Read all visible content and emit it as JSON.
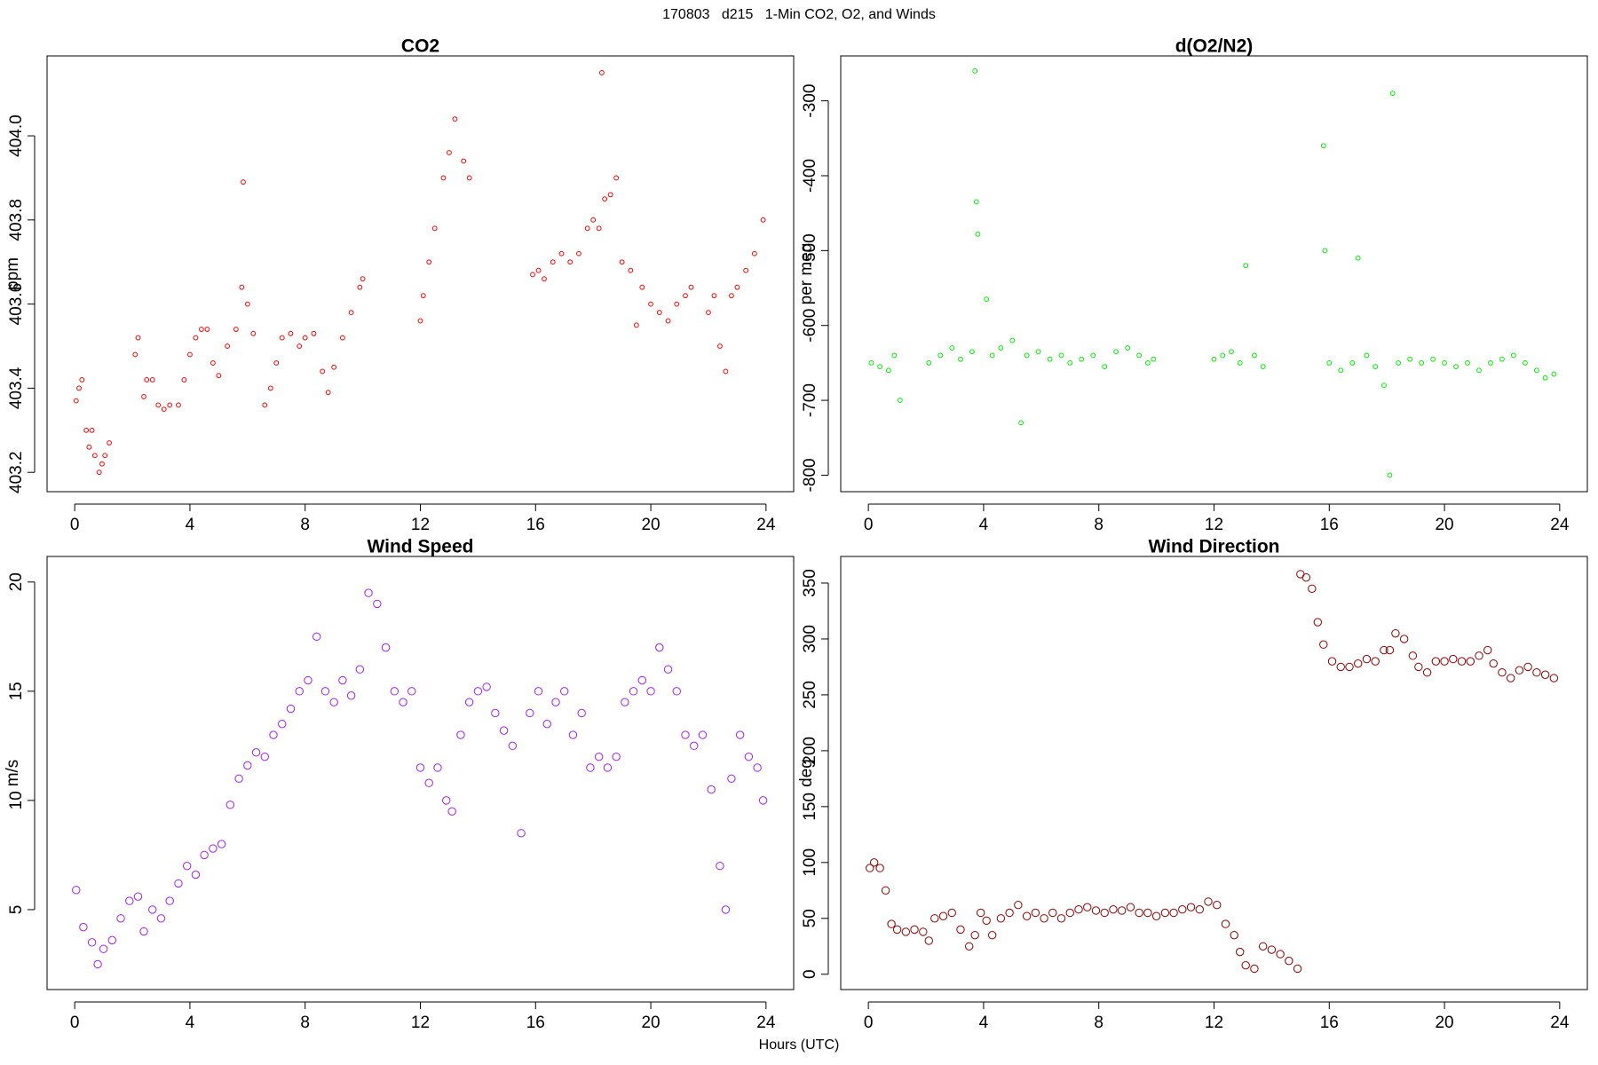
{
  "title": "170803   d215   1-Min CO2, O2, and Winds",
  "x_label": "Hours (UTC)",
  "chart_data": [
    {
      "type": "scatter",
      "title": "CO2",
      "y_label": "ppm",
      "color": "#ff0000",
      "xlim": [
        -0.96,
        24.96
      ],
      "xticks": [
        0,
        4,
        8,
        12,
        16,
        20,
        24
      ],
      "ylim": [
        403.154,
        404.19
      ],
      "yticks": [
        403.2,
        403.4,
        403.6,
        403.8,
        {
          "value": 404,
          "label": "404.0"
        }
      ],
      "x": [
        0.05,
        0.15,
        0.25,
        0.4,
        0.5,
        0.6,
        0.7,
        0.85,
        0.95,
        1.05,
        1.2,
        2.1,
        2.2,
        2.4,
        2.5,
        2.7,
        2.9,
        3.1,
        3.3,
        3.6,
        3.8,
        4.0,
        4.2,
        4.4,
        4.6,
        4.8,
        5.0,
        5.3,
        5.6,
        5.8,
        5.85,
        6.0,
        6.2,
        6.6,
        6.8,
        7.0,
        7.2,
        7.5,
        7.8,
        8.0,
        8.3,
        8.6,
        8.8,
        9.0,
        9.3,
        9.6,
        9.9,
        10.0,
        12.0,
        12.1,
        12.3,
        12.5,
        12.8,
        13.0,
        13.2,
        13.5,
        13.7,
        15.9,
        16.1,
        16.3,
        16.6,
        16.9,
        17.2,
        17.5,
        17.8,
        18.0,
        18.2,
        18.3,
        18.4,
        18.6,
        18.8,
        19.0,
        19.3,
        19.5,
        19.7,
        20.0,
        20.3,
        20.6,
        20.9,
        21.2,
        21.4,
        22.0,
        22.2,
        22.4,
        22.6,
        22.8,
        23.0,
        23.3,
        23.6,
        23.9
      ],
      "values": [
        403.37,
        403.4,
        403.42,
        403.3,
        403.26,
        403.3,
        403.24,
        403.2,
        403.22,
        403.24,
        403.27,
        403.48,
        403.52,
        403.38,
        403.42,
        403.42,
        403.36,
        403.35,
        403.36,
        403.36,
        403.42,
        403.48,
        403.52,
        403.54,
        403.54,
        403.46,
        403.43,
        403.5,
        403.54,
        403.64,
        403.89,
        403.6,
        403.53,
        403.36,
        403.4,
        403.46,
        403.52,
        403.53,
        403.5,
        403.52,
        403.53,
        403.44,
        403.39,
        403.45,
        403.52,
        403.58,
        403.64,
        403.66,
        403.56,
        403.62,
        403.7,
        403.78,
        403.9,
        403.96,
        404.04,
        403.94,
        403.9,
        403.67,
        403.68,
        403.66,
        403.7,
        403.72,
        403.7,
        403.72,
        403.78,
        403.8,
        403.78,
        404.15,
        403.85,
        403.86,
        403.9,
        403.7,
        403.68,
        403.55,
        403.64,
        403.6,
        403.58,
        403.56,
        403.6,
        403.62,
        403.64,
        403.58,
        403.62,
        403.5,
        403.44,
        403.62,
        403.64,
        403.68,
        403.72,
        403.8
      ]
    },
    {
      "type": "scatter",
      "title": "d(O2/N2)",
      "y_label": "per meg",
      "color": "#00ee00",
      "xlim": [
        -0.96,
        24.96
      ],
      "xticks": [
        0,
        4,
        8,
        12,
        16,
        20,
        24
      ],
      "ylim": [
        -822,
        -240
      ],
      "yticks": [
        -800,
        -700,
        -600,
        -500,
        -400,
        -300
      ],
      "x": [
        0.1,
        0.4,
        0.7,
        0.9,
        1.1,
        2.1,
        2.5,
        2.9,
        3.2,
        3.6,
        3.7,
        3.75,
        3.8,
        4.1,
        4.3,
        4.6,
        5.0,
        5.3,
        5.5,
        5.9,
        6.3,
        6.7,
        7.0,
        7.4,
        7.8,
        8.2,
        8.6,
        9.0,
        9.4,
        9.7,
        9.9,
        12.0,
        12.3,
        12.6,
        12.9,
        13.1,
        13.4,
        13.7,
        15.8,
        15.85,
        16.0,
        16.4,
        16.8,
        17.0,
        17.3,
        17.6,
        17.9,
        18.1,
        18.2,
        18.4,
        18.8,
        19.2,
        19.6,
        20.0,
        20.4,
        20.8,
        21.2,
        21.6,
        22.0,
        22.4,
        22.8,
        23.2,
        23.5,
        23.8
      ],
      "values": [
        -650,
        -655,
        -660,
        -640,
        -700,
        -650,
        -640,
        -630,
        -645,
        -635,
        -260,
        -435,
        -478,
        -565,
        -640,
        -630,
        -620,
        -730,
        -640,
        -635,
        -645,
        -640,
        -650,
        -645,
        -640,
        -655,
        -635,
        -630,
        -640,
        -650,
        -645,
        -645,
        -640,
        -635,
        -650,
        -520,
        -640,
        -655,
        -360,
        -500,
        -650,
        -660,
        -650,
        -510,
        -640,
        -655,
        -680,
        -800,
        -290,
        -650,
        -645,
        -650,
        -645,
        -650,
        -655,
        -650,
        -660,
        -650,
        -645,
        -640,
        -650,
        -660,
        -670,
        -665
      ]
    },
    {
      "type": "scatter",
      "title": "Wind Speed",
      "y_label": "m/s",
      "color": "#a020f0",
      "xlim": [
        -0.96,
        24.96
      ],
      "xticks": [
        0,
        4,
        8,
        12,
        16,
        20,
        24
      ],
      "ylim": [
        1.34,
        21.17
      ],
      "yticks": [
        5,
        10,
        15,
        20
      ],
      "x": [
        0.05,
        0.3,
        0.6,
        0.8,
        1.0,
        1.3,
        1.6,
        1.9,
        2.2,
        2.4,
        2.7,
        3.0,
        3.3,
        3.6,
        3.9,
        4.2,
        4.5,
        4.8,
        5.1,
        5.4,
        5.7,
        6.0,
        6.3,
        6.6,
        6.9,
        7.2,
        7.5,
        7.8,
        8.1,
        8.4,
        8.7,
        9.0,
        9.3,
        9.6,
        9.9,
        10.2,
        10.5,
        10.8,
        11.1,
        11.4,
        11.7,
        12.0,
        12.3,
        12.6,
        12.9,
        13.1,
        13.4,
        13.7,
        14.0,
        14.3,
        14.6,
        14.9,
        15.2,
        15.5,
        15.8,
        16.1,
        16.4,
        16.7,
        17.0,
        17.3,
        17.6,
        17.9,
        18.2,
        18.5,
        18.8,
        19.1,
        19.4,
        19.7,
        20.0,
        20.3,
        20.6,
        20.9,
        21.2,
        21.5,
        21.8,
        22.1,
        22.4,
        22.6,
        22.8,
        23.1,
        23.4,
        23.7,
        23.9
      ],
      "values": [
        5.9,
        4.2,
        3.5,
        2.5,
        3.2,
        3.6,
        4.6,
        5.4,
        5.6,
        4.0,
        5.0,
        4.6,
        5.4,
        6.2,
        7.0,
        6.6,
        7.5,
        7.8,
        8.0,
        9.8,
        11.0,
        11.6,
        12.2,
        12.0,
        13.0,
        13.5,
        14.2,
        15.0,
        15.5,
        17.5,
        15.0,
        14.5,
        15.5,
        14.8,
        16.0,
        19.5,
        19.0,
        17.0,
        15.0,
        14.5,
        15.0,
        11.5,
        10.8,
        11.5,
        10.0,
        9.5,
        13.0,
        14.5,
        15.0,
        15.2,
        14.0,
        13.2,
        12.5,
        8.5,
        14.0,
        15.0,
        13.5,
        14.5,
        15.0,
        13.0,
        14.0,
        11.5,
        12.0,
        11.5,
        12.0,
        14.5,
        15.0,
        15.5,
        15.0,
        17.0,
        16.0,
        15.0,
        13.0,
        12.5,
        13.0,
        10.5,
        7.0,
        5.0,
        11.0,
        13.0,
        12.0,
        11.5,
        10.0
      ]
    },
    {
      "type": "scatter",
      "title": "Wind Direction",
      "y_label": "deg",
      "color": "#8b0000",
      "xlim": [
        -0.96,
        24.96
      ],
      "xticks": [
        0,
        4,
        8,
        12,
        16,
        20,
        24
      ],
      "ylim": [
        -13.7,
        373.8
      ],
      "yticks": [
        0,
        50,
        100,
        150,
        200,
        250,
        300,
        350
      ],
      "x": [
        0.05,
        0.2,
        0.4,
        0.6,
        0.8,
        1.0,
        1.3,
        1.6,
        1.9,
        2.1,
        2.3,
        2.6,
        2.9,
        3.2,
        3.5,
        3.7,
        3.9,
        4.1,
        4.3,
        4.6,
        4.9,
        5.2,
        5.5,
        5.8,
        6.1,
        6.4,
        6.7,
        7.0,
        7.3,
        7.6,
        7.9,
        8.2,
        8.5,
        8.8,
        9.1,
        9.4,
        9.7,
        10.0,
        10.3,
        10.6,
        10.9,
        11.2,
        11.5,
        11.8,
        12.1,
        12.4,
        12.7,
        12.9,
        13.1,
        13.4,
        13.7,
        14.0,
        14.3,
        14.6,
        14.9,
        15.0,
        15.2,
        15.4,
        15.6,
        15.8,
        16.1,
        16.4,
        16.7,
        17.0,
        17.3,
        17.6,
        17.9,
        18.1,
        18.3,
        18.6,
        18.9,
        19.1,
        19.4,
        19.7,
        20.0,
        20.3,
        20.6,
        20.9,
        21.2,
        21.5,
        21.7,
        22.0,
        22.3,
        22.6,
        22.9,
        23.2,
        23.5,
        23.8
      ],
      "values": [
        95,
        100,
        95,
        75,
        45,
        40,
        38,
        40,
        38,
        30,
        50,
        52,
        55,
        40,
        25,
        35,
        55,
        48,
        35,
        50,
        55,
        62,
        52,
        55,
        50,
        55,
        50,
        55,
        58,
        60,
        57,
        55,
        58,
        57,
        60,
        55,
        55,
        52,
        55,
        55,
        58,
        60,
        58,
        65,
        62,
        45,
        35,
        20,
        8,
        5,
        25,
        22,
        18,
        12,
        5,
        358,
        355,
        345,
        315,
        295,
        280,
        275,
        275,
        278,
        282,
        280,
        290,
        290,
        305,
        300,
        285,
        275,
        270,
        280,
        280,
        282,
        280,
        280,
        285,
        290,
        278,
        270,
        265,
        272,
        275,
        270,
        268,
        265
      ]
    }
  ]
}
